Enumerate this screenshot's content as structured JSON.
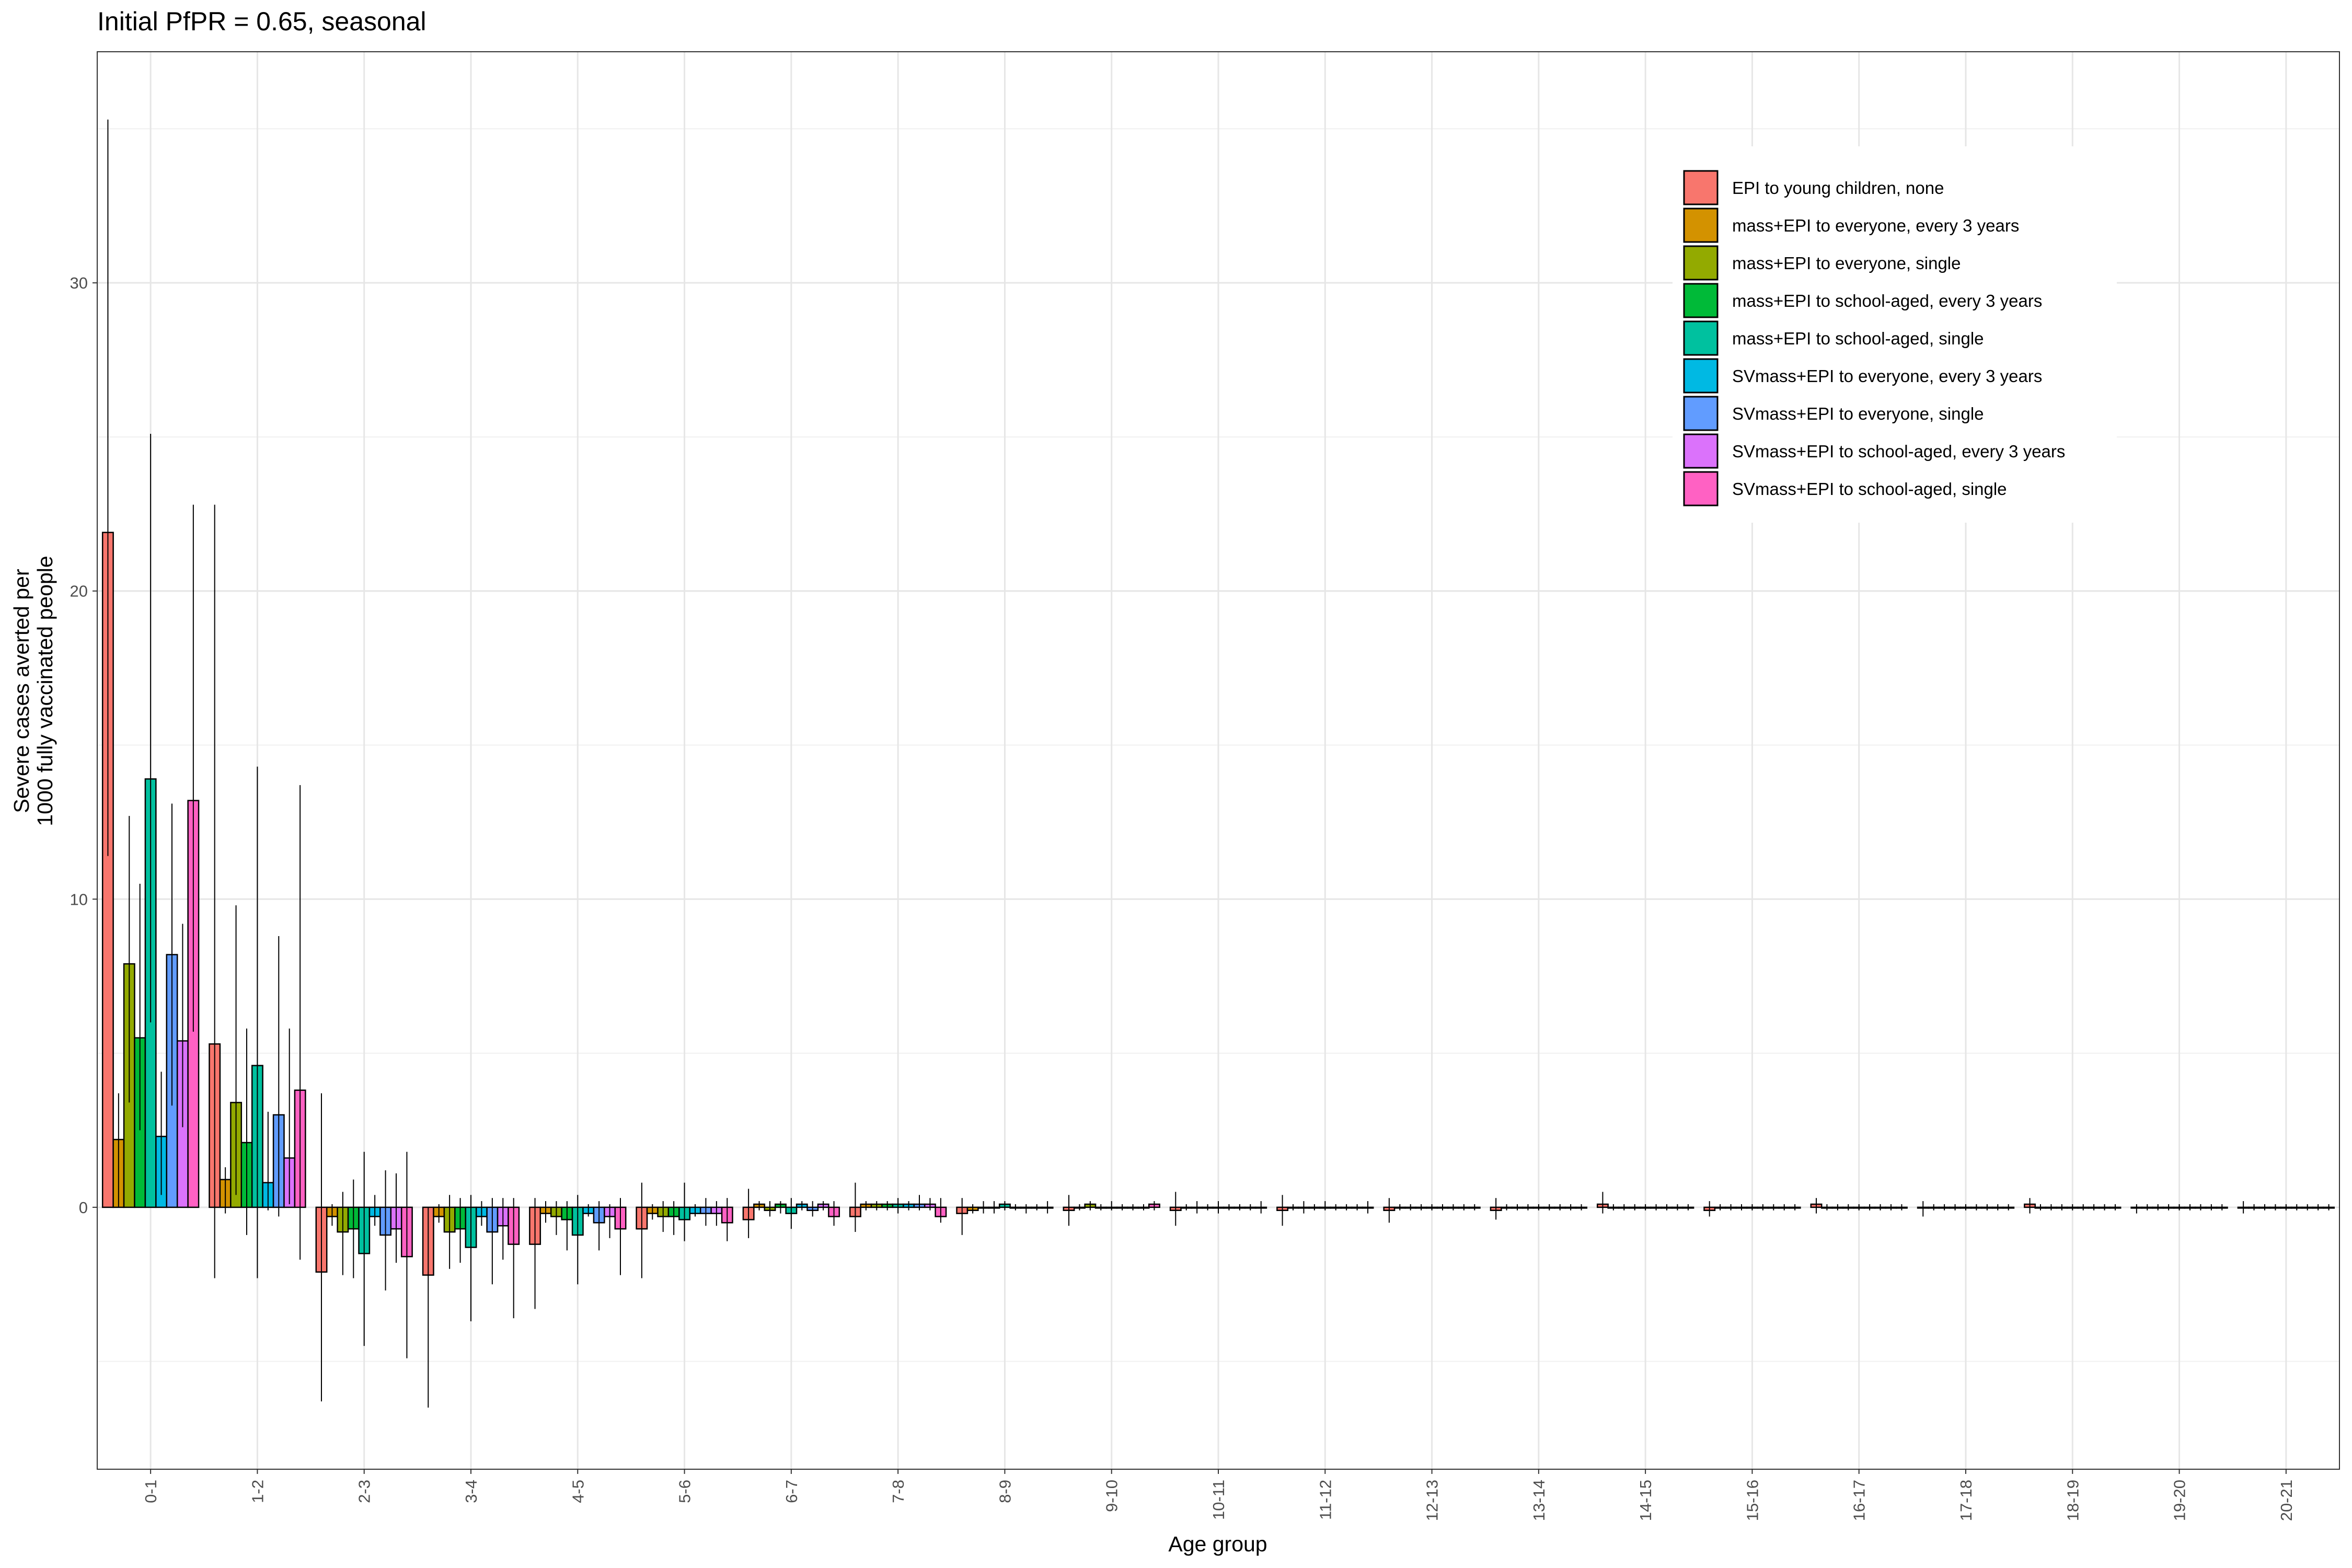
{
  "chart_data": {
    "type": "bar",
    "title": "Initial PfPR = 0.65, seasonal",
    "xlabel": "Age group",
    "ylabel_lines": [
      "Severe cases averted per",
      "1000 fully vaccinated people"
    ],
    "ylim": [
      -8.5,
      37.5
    ],
    "yticks": [
      0,
      10,
      20,
      30
    ],
    "grid": true,
    "legend_position": "top-right",
    "categories": [
      "0-1",
      "1-2",
      "2-3",
      "3-4",
      "4-5",
      "5-6",
      "6-7",
      "7-8",
      "8-9",
      "9-10",
      "10-11",
      "11-12",
      "12-13",
      "13-14",
      "14-15",
      "15-16",
      "16-17",
      "17-18",
      "18-19",
      "19-20",
      "20-21"
    ],
    "series": [
      {
        "name": "EPI to young children, none",
        "color": "#F8766D",
        "values": [
          21.9,
          5.3,
          -2.1,
          -2.2,
          -1.2,
          -0.7,
          -0.4,
          -0.3,
          -0.2,
          -0.1,
          -0.1,
          -0.1,
          -0.1,
          -0.1,
          0.1,
          -0.1,
          0.1,
          0.0,
          0.1,
          0.0,
          0.0
        ],
        "lower": [
          11.4,
          -2.3,
          -6.3,
          -6.5,
          -3.3,
          -2.3,
          -1.0,
          -0.8,
          -0.9,
          -0.6,
          -0.6,
          -0.6,
          -0.5,
          -0.4,
          -0.2,
          -0.3,
          -0.2,
          -0.3,
          -0.2,
          -0.2,
          -0.2
        ],
        "upper": [
          35.3,
          22.8,
          3.7,
          0.0,
          0.3,
          0.8,
          0.6,
          0.8,
          0.3,
          0.4,
          0.5,
          0.4,
          0.3,
          0.3,
          0.5,
          0.2,
          0.3,
          0.2,
          0.3,
          0.1,
          0.2
        ]
      },
      {
        "name": "mass+EPI to everyone, every 3 years",
        "color": "#D39200",
        "values": [
          2.2,
          0.9,
          -0.3,
          -0.3,
          -0.2,
          -0.2,
          0.1,
          0.1,
          -0.1,
          0.0,
          0.0,
          0.0,
          0.0,
          0.0,
          0.0,
          0.0,
          0.0,
          0.0,
          0.0,
          0.0,
          0.0
        ],
        "lower": [
          0.0,
          -0.2,
          -0.6,
          -0.5,
          -0.5,
          -0.4,
          -0.1,
          -0.1,
          -0.2,
          -0.1,
          -0.1,
          -0.1,
          -0.1,
          -0.1,
          -0.1,
          -0.1,
          -0.1,
          -0.1,
          -0.1,
          -0.1,
          -0.1
        ],
        "upper": [
          3.7,
          1.3,
          0.1,
          0.1,
          0.2,
          0.1,
          0.2,
          0.2,
          0.1,
          0.1,
          0.1,
          0.1,
          0.1,
          0.1,
          0.1,
          0.1,
          0.1,
          0.1,
          0.1,
          0.1,
          0.1
        ]
      },
      {
        "name": "mass+EPI to everyone, single",
        "color": "#93AA00",
        "values": [
          7.9,
          3.4,
          -0.8,
          -0.8,
          -0.3,
          -0.3,
          -0.1,
          0.1,
          0.0,
          0.1,
          0.0,
          0.0,
          0.0,
          0.0,
          0.0,
          0.0,
          0.0,
          0.0,
          0.0,
          0.0,
          0.0
        ],
        "lower": [
          3.4,
          0.4,
          -2.2,
          -2.0,
          -0.9,
          -0.8,
          -0.3,
          -0.1,
          -0.2,
          -0.1,
          -0.2,
          -0.2,
          -0.1,
          -0.1,
          -0.1,
          -0.1,
          -0.1,
          -0.1,
          -0.1,
          -0.1,
          -0.1
        ],
        "upper": [
          12.7,
          9.8,
          0.5,
          0.4,
          0.2,
          0.2,
          0.2,
          0.2,
          0.2,
          0.2,
          0.2,
          0.2,
          0.1,
          0.1,
          0.1,
          0.1,
          0.1,
          0.1,
          0.1,
          0.1,
          0.1
        ]
      },
      {
        "name": "mass+EPI to school-aged, every 3 years",
        "color": "#00BA38",
        "values": [
          5.5,
          2.1,
          -0.7,
          -0.7,
          -0.4,
          -0.3,
          0.1,
          0.1,
          0.0,
          0.0,
          0.0,
          0.0,
          0.0,
          0.0,
          0.0,
          0.0,
          0.0,
          0.0,
          0.0,
          0.0,
          0.0
        ],
        "lower": [
          2.5,
          -0.9,
          -2.3,
          -1.8,
          -1.4,
          -0.9,
          -0.2,
          -0.1,
          -0.2,
          -0.1,
          -0.1,
          -0.1,
          -0.1,
          -0.1,
          -0.1,
          -0.1,
          -0.1,
          -0.1,
          -0.1,
          -0.1,
          -0.1
        ],
        "upper": [
          10.5,
          5.8,
          0.9,
          0.3,
          0.2,
          0.2,
          0.2,
          0.2,
          0.2,
          0.1,
          0.1,
          0.1,
          0.1,
          0.1,
          0.1,
          0.1,
          0.1,
          0.1,
          0.1,
          0.1,
          0.1
        ]
      },
      {
        "name": "mass+EPI to school-aged, single",
        "color": "#00C19F",
        "values": [
          13.9,
          4.6,
          -1.5,
          -1.3,
          -0.9,
          -0.4,
          -0.2,
          0.1,
          0.1,
          0.0,
          0.0,
          0.0,
          0.0,
          0.0,
          0.0,
          0.0,
          0.0,
          0.0,
          0.0,
          0.0,
          0.0
        ],
        "lower": [
          6.0,
          -2.3,
          -4.5,
          -3.7,
          -2.5,
          -1.1,
          -0.7,
          -0.2,
          -0.1,
          -0.1,
          -0.2,
          -0.1,
          -0.1,
          -0.1,
          -0.1,
          -0.1,
          -0.1,
          -0.1,
          -0.1,
          -0.1,
          -0.1
        ],
        "upper": [
          25.1,
          14.3,
          1.8,
          0.4,
          0.4,
          0.8,
          0.3,
          0.3,
          0.2,
          0.2,
          0.2,
          0.2,
          0.1,
          0.1,
          0.1,
          0.1,
          0.1,
          0.1,
          0.1,
          0.1,
          0.1
        ]
      },
      {
        "name": "SVmass+EPI to everyone, every 3 years",
        "color": "#00B9E3",
        "values": [
          2.3,
          0.8,
          -0.3,
          -0.3,
          -0.2,
          -0.2,
          0.1,
          0.1,
          0.0,
          0.0,
          0.0,
          0.0,
          0.0,
          0.0,
          0.0,
          0.0,
          0.0,
          0.0,
          0.0,
          0.0,
          0.0
        ],
        "lower": [
          0.4,
          -0.1,
          -0.6,
          -0.6,
          -0.3,
          -0.3,
          -0.1,
          -0.1,
          -0.1,
          -0.1,
          -0.1,
          -0.1,
          -0.1,
          -0.1,
          -0.1,
          -0.1,
          -0.1,
          -0.1,
          -0.1,
          -0.1,
          -0.1
        ],
        "upper": [
          4.4,
          3.1,
          0.4,
          0.2,
          0.1,
          0.1,
          0.2,
          0.2,
          0.1,
          0.1,
          0.1,
          0.1,
          0.1,
          0.1,
          0.1,
          0.1,
          0.1,
          0.1,
          0.1,
          0.1,
          0.1
        ]
      },
      {
        "name": "SVmass+EPI to everyone, single",
        "color": "#619CFF",
        "values": [
          8.2,
          3.0,
          -0.9,
          -0.8,
          -0.5,
          -0.2,
          -0.1,
          0.1,
          0.0,
          0.0,
          0.0,
          0.0,
          0.0,
          0.0,
          0.0,
          0.0,
          0.0,
          0.0,
          0.0,
          0.0,
          0.0
        ],
        "lower": [
          3.3,
          -0.3,
          -2.7,
          -2.5,
          -1.4,
          -0.6,
          -0.3,
          -0.1,
          -0.2,
          -0.1,
          -0.1,
          -0.1,
          -0.1,
          -0.1,
          -0.1,
          -0.1,
          -0.1,
          -0.1,
          -0.1,
          -0.1,
          -0.1
        ],
        "upper": [
          13.1,
          8.8,
          1.2,
          0.3,
          0.2,
          0.3,
          0.2,
          0.4,
          0.1,
          0.1,
          0.1,
          0.1,
          0.1,
          0.1,
          0.1,
          0.1,
          0.1,
          0.1,
          0.1,
          0.1,
          0.1
        ]
      },
      {
        "name": "SVmass+EPI to school-aged, every 3 years",
        "color": "#DB72FB",
        "values": [
          5.4,
          1.6,
          -0.7,
          -0.6,
          -0.3,
          -0.2,
          0.1,
          0.1,
          0.0,
          0.0,
          0.0,
          0.0,
          0.0,
          0.0,
          0.0,
          0.0,
          0.0,
          0.0,
          0.0,
          0.0,
          0.0
        ],
        "lower": [
          2.6,
          0.1,
          -1.8,
          -1.7,
          -1.0,
          -0.6,
          -0.1,
          -0.1,
          -0.1,
          -0.1,
          -0.1,
          -0.1,
          -0.1,
          -0.1,
          -0.1,
          -0.1,
          -0.1,
          -0.1,
          -0.1,
          -0.1,
          -0.1
        ],
        "upper": [
          9.2,
          5.8,
          1.1,
          0.3,
          0.1,
          0.2,
          0.2,
          0.3,
          0.1,
          0.1,
          0.1,
          0.1,
          0.1,
          0.1,
          0.1,
          0.1,
          0.1,
          0.1,
          0.1,
          0.1,
          0.1
        ]
      },
      {
        "name": "SVmass+EPI to school-aged, single",
        "color": "#FF61C3",
        "values": [
          13.2,
          3.8,
          -1.6,
          -1.2,
          -0.7,
          -0.5,
          -0.3,
          -0.3,
          0.0,
          0.1,
          0.0,
          0.0,
          0.0,
          0.0,
          0.0,
          0.0,
          0.0,
          0.0,
          0.0,
          0.0,
          0.0
        ],
        "lower": [
          5.7,
          -1.7,
          -4.9,
          -3.6,
          -2.2,
          -1.1,
          -0.6,
          -0.5,
          -0.2,
          -0.1,
          -0.2,
          -0.2,
          -0.1,
          -0.1,
          -0.1,
          -0.1,
          -0.1,
          -0.1,
          -0.1,
          -0.1,
          -0.1
        ],
        "upper": [
          22.8,
          13.7,
          1.8,
          0.3,
          0.3,
          0.3,
          0.2,
          0.3,
          0.2,
          0.2,
          0.2,
          0.2,
          0.1,
          0.1,
          0.1,
          0.1,
          0.1,
          0.1,
          0.1,
          0.1,
          0.1
        ]
      }
    ]
  }
}
